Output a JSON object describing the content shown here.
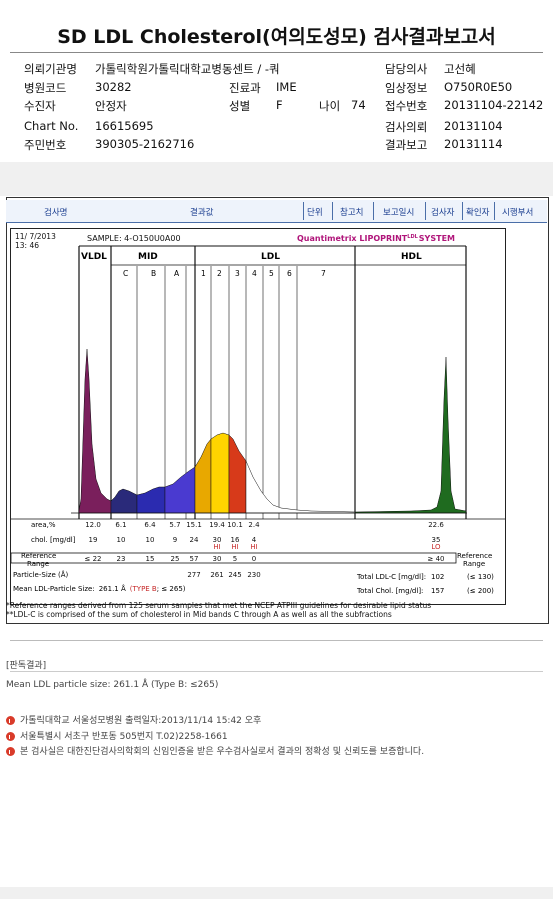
{
  "title": "SD LDL Cholesterol(여의도성모) 검사결과보고서",
  "info": {
    "institution_label": "의뢰기관명",
    "institution": "가톨릭학원가톨릭대학교병동센트 / -쿼",
    "doctor_label": "담당의사",
    "doctor": "고선혜",
    "hospital_code_label": "병원코드",
    "hospital_code": "30282",
    "dept_label": "진료과",
    "dept": "IME",
    "clinical_label": "임상정보",
    "clinical": "O750R0E50",
    "patient_label": "수진자",
    "patient": "안정자",
    "sex_label": "성별",
    "sex": "F",
    "age_label": "나이",
    "age": "74",
    "receipt_label": "접수번호",
    "receipt": "20131104-22142",
    "chart_label": "Chart No.",
    "chart": "16615695",
    "test_date_label": "검사의뢰",
    "test_date": "20131104",
    "id_label": "주민번호",
    "id": "390305-2162716",
    "report_date_label": "결과보고",
    "report_date": "20131114"
  },
  "columns": [
    "검사명",
    "결과값",
    "단위",
    "참고치",
    "보고일시",
    "검사자",
    "확인자",
    "시행부서"
  ],
  "lipoprint": {
    "date": "11/ 7/2013",
    "time": "13: 46",
    "sample": "SAMPLE: 4-O150U0A00",
    "brand": "Quantimetrix LIPOPRINT",
    "brand_sup": "LDL",
    "brand_end": "SYSTEM",
    "group_vldl": "VLDL",
    "group_mid": "MID",
    "group_ldl": "LDL",
    "group_hdl": "HDL",
    "mid_bands": [
      "C",
      "B",
      "A"
    ],
    "ldl_bands": [
      "1",
      "2",
      "3",
      "4",
      "5",
      "6",
      "7"
    ],
    "area_label": "area,%",
    "area_values": [
      "12.0",
      "6.1",
      "6.4",
      "5.7",
      "15.1",
      "19.4",
      "10.1",
      "2.4"
    ],
    "area_hdl": "22.6",
    "chol_label": "chol. [mg/dl]",
    "chol_values": [
      "19",
      "10",
      "10",
      "9",
      "24",
      "30",
      "16",
      "4"
    ],
    "chol_hdl": "35",
    "flags": [
      "HI",
      "HI",
      "HI"
    ],
    "flag_hdl": "LO",
    "ref_label_1": "Reference",
    "ref_label_2": "Range",
    "ref_values": [
      "≤ 22",
      "23",
      "15",
      "25",
      "57",
      "30",
      "5",
      "0"
    ],
    "ref_hdl": "≥ 40",
    "ref_right_1": "Reference",
    "ref_right_2": "Range",
    "size_label": "Particle-Size (Å)",
    "size_values": [
      "277",
      "261",
      "245",
      "230"
    ],
    "mean_label": "Mean LDL-Particle Size:",
    "mean_value": "261.1 Å",
    "mean_type": "(TYPE B",
    "mean_ref": "; ≤ 265)",
    "total_ldl_label": "Total LDL-C [mg/dl]:",
    "total_ldl": "102",
    "total_ldl_ref": "(≤ 130)",
    "total_chol_label": "Total Chol. [mg/dl]:",
    "total_chol": "157",
    "total_chol_ref": "(≤ 200)"
  },
  "footnote_1": "*Reference ranges derived from 125 serum samples that met the NCEP ATPIII guidelines for desirable lipid status",
  "footnote_2": "**LDL-C is comprised of the sum of cholesterol in Mid bands C through A as well as all the subfractions",
  "interpretation_header": "[판독결과]",
  "interpretation": "Mean LDL particle size: 261.1 Å (Type B: ≤265)",
  "footer": {
    "line_1": "가톨릭대학교 서울성모병원        출력일자:2013/11/14 15:42 오후",
    "line_2": "서울특별시 서초구 반포동 505번지 T.02)2258-1661",
    "line_3": "본 검사실은 대한진단검사의학회의 신임인증을 받은 우수검사실로서 결과의 정확성 및 신뢰도를 보증합니다."
  },
  "colors": {
    "vldl": "#7a1f5c",
    "mid_c": "#2a2a7a",
    "mid_b": "#2b2bb0",
    "mid_a": "#4a3ad0",
    "ldl1": "#e8b800",
    "ldl2": "#ffd400",
    "ldl3": "#d73a1a",
    "hdl": "#1f6b1f",
    "brand": "#b0157a",
    "header_blue": "#1a3d8f",
    "flag": "#c62828"
  }
}
